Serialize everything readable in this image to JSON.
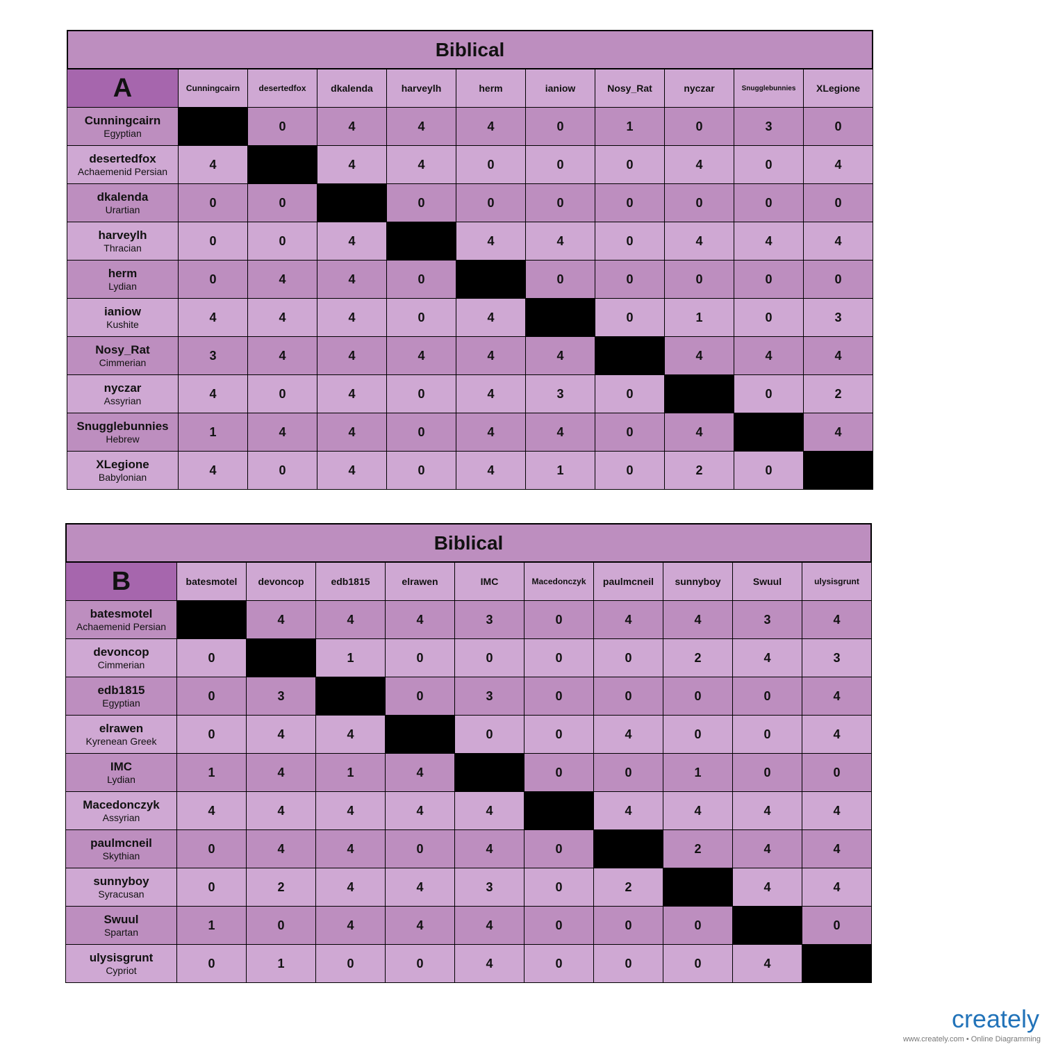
{
  "tables": [
    {
      "title": "Biblical",
      "label": "A",
      "columns": [
        "Cunningcairn",
        "desertedfox",
        "dkalenda",
        "harveylh",
        "herm",
        "ianiow",
        "Nosy_Rat",
        "nyczar",
        "Snugglebunnies",
        "XLegione"
      ],
      "rows": [
        {
          "name": "Cunningcairn",
          "civ": "Egyptian",
          "values": [
            null,
            0,
            4,
            4,
            4,
            0,
            1,
            0,
            3,
            0
          ]
        },
        {
          "name": "desertedfox",
          "civ": "Achaemenid Persian",
          "values": [
            4,
            null,
            4,
            4,
            0,
            0,
            0,
            4,
            0,
            4
          ]
        },
        {
          "name": "dkalenda",
          "civ": "Urartian",
          "values": [
            0,
            0,
            null,
            0,
            0,
            0,
            0,
            0,
            0,
            0
          ]
        },
        {
          "name": "harveylh",
          "civ": "Thracian",
          "values": [
            0,
            0,
            4,
            null,
            4,
            4,
            0,
            4,
            4,
            4
          ]
        },
        {
          "name": "herm",
          "civ": "Lydian",
          "values": [
            0,
            4,
            4,
            0,
            null,
            0,
            0,
            0,
            0,
            0
          ]
        },
        {
          "name": "ianiow",
          "civ": "Kushite",
          "values": [
            4,
            4,
            4,
            0,
            4,
            null,
            0,
            1,
            0,
            3
          ]
        },
        {
          "name": "Nosy_Rat",
          "civ": "Cimmerian",
          "values": [
            3,
            4,
            4,
            4,
            4,
            4,
            null,
            4,
            4,
            4
          ]
        },
        {
          "name": "nyczar",
          "civ": "Assyrian",
          "values": [
            4,
            0,
            4,
            0,
            4,
            3,
            0,
            null,
            0,
            2
          ]
        },
        {
          "name": "Snugglebunnies",
          "civ": "Hebrew",
          "values": [
            1,
            4,
            4,
            0,
            4,
            4,
            0,
            4,
            null,
            4
          ]
        },
        {
          "name": "XLegione",
          "civ": "Babylonian",
          "values": [
            4,
            0,
            4,
            0,
            4,
            1,
            0,
            2,
            0,
            null
          ]
        }
      ]
    },
    {
      "title": "Biblical",
      "label": "B",
      "columns": [
        "batesmotel",
        "devoncop",
        "edb1815",
        "elrawen",
        "IMC",
        "Macedonczyk",
        "paulmcneil",
        "sunnyboy",
        "Swuul",
        "ulysisgrunt"
      ],
      "rows": [
        {
          "name": "batesmotel",
          "civ": "Achaemenid Persian",
          "values": [
            null,
            4,
            4,
            4,
            3,
            0,
            4,
            4,
            3,
            4
          ]
        },
        {
          "name": "devoncop",
          "civ": "Cimmerian",
          "values": [
            0,
            null,
            1,
            0,
            0,
            0,
            0,
            2,
            4,
            3
          ]
        },
        {
          "name": "edb1815",
          "civ": "Egyptian",
          "values": [
            0,
            3,
            null,
            0,
            3,
            0,
            0,
            0,
            0,
            4
          ]
        },
        {
          "name": "elrawen",
          "civ": "Kyrenean Greek",
          "values": [
            0,
            4,
            4,
            null,
            0,
            0,
            4,
            0,
            0,
            4
          ]
        },
        {
          "name": "IMC",
          "civ": "Lydian",
          "values": [
            1,
            4,
            1,
            4,
            null,
            0,
            0,
            1,
            0,
            0
          ]
        },
        {
          "name": "Macedonczyk",
          "civ": "Assyrian",
          "values": [
            4,
            4,
            4,
            4,
            4,
            null,
            4,
            4,
            4,
            4
          ]
        },
        {
          "name": "paulmcneil",
          "civ": "Skythian",
          "values": [
            0,
            4,
            4,
            0,
            4,
            0,
            null,
            2,
            4,
            4
          ]
        },
        {
          "name": "sunnyboy",
          "civ": "Syracusan",
          "values": [
            0,
            2,
            4,
            4,
            3,
            0,
            2,
            null,
            4,
            4
          ]
        },
        {
          "name": "Swuul",
          "civ": "Spartan",
          "values": [
            1,
            0,
            4,
            4,
            4,
            0,
            0,
            0,
            null,
            0
          ]
        },
        {
          "name": "ulysisgrunt",
          "civ": "Cypriot",
          "values": [
            0,
            1,
            0,
            0,
            4,
            0,
            0,
            0,
            4,
            null
          ]
        }
      ]
    }
  ],
  "footer": {
    "logo": "creately",
    "tagline": "www.creately.com • Online Diagramming"
  }
}
